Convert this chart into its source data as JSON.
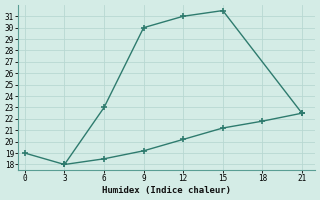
{
  "xlabel": "Humidex (Indice chaleur)",
  "line1_x": [
    0,
    3,
    6,
    9,
    12,
    15,
    21
  ],
  "line1_y": [
    19,
    18,
    23,
    30,
    31,
    31.5,
    22.5
  ],
  "line2_x": [
    3,
    6,
    9,
    12,
    15,
    18,
    21
  ],
  "line2_y": [
    18,
    18.5,
    19.2,
    20.2,
    21.2,
    21.8,
    22.5
  ],
  "line_color": "#2e7b6e",
  "bg_color": "#d4ece6",
  "grid_color": "#b8d8d2",
  "xlim": [
    -0.5,
    22
  ],
  "ylim": [
    17.5,
    32
  ],
  "xticks": [
    0,
    3,
    6,
    9,
    12,
    15,
    18,
    21
  ],
  "yticks": [
    18,
    19,
    20,
    21,
    22,
    23,
    24,
    25,
    26,
    27,
    28,
    29,
    30,
    31
  ],
  "marker": "+",
  "markersize": 5,
  "linewidth": 1.0
}
